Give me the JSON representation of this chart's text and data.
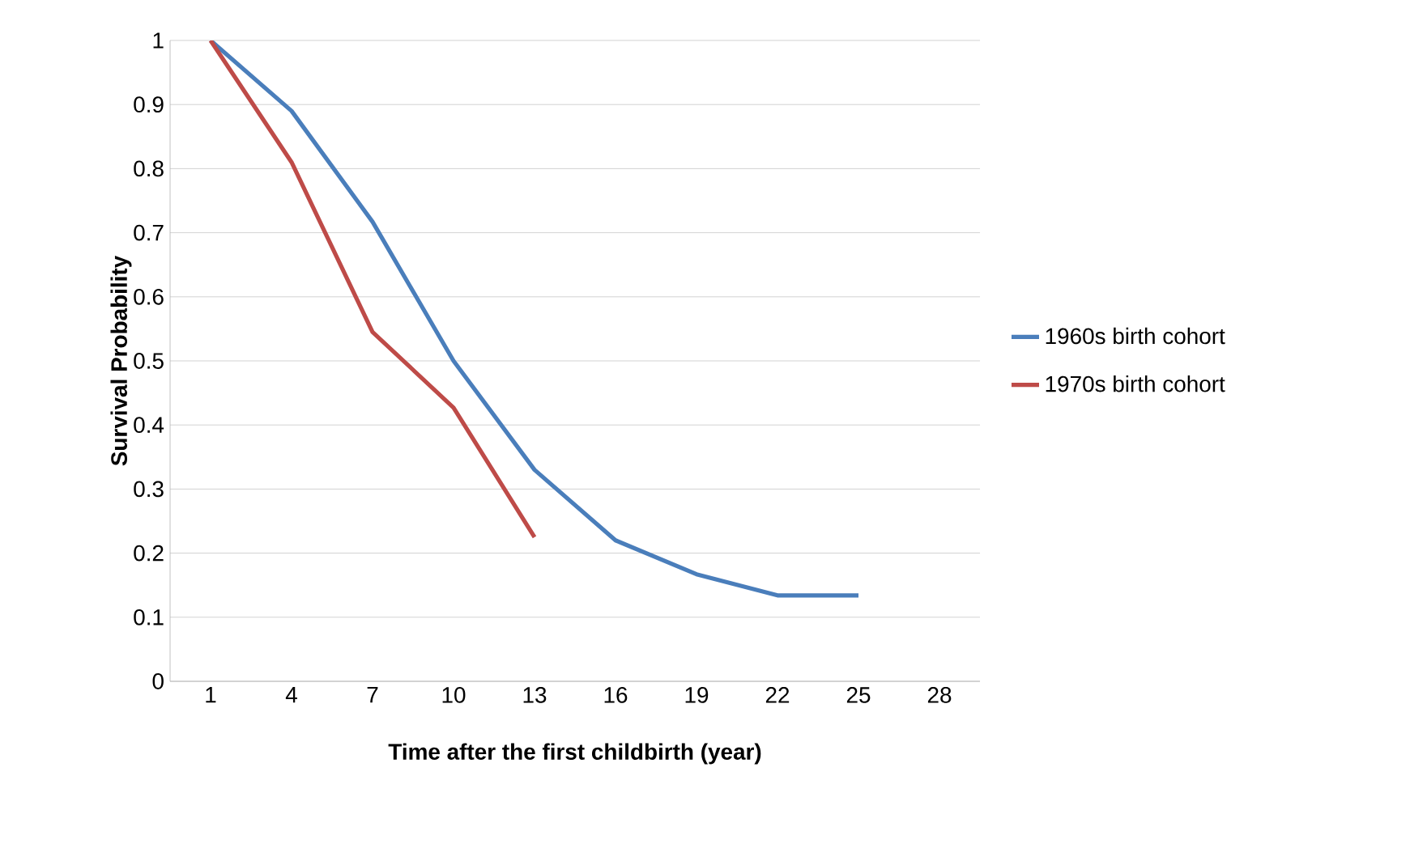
{
  "chart_data": {
    "type": "line",
    "xlabel": "Time after the first childbirth (year)",
    "ylabel": "Survival Probability",
    "categories": [
      "1",
      "4",
      "7",
      "10",
      "13",
      "16",
      "19",
      "22",
      "25",
      "28"
    ],
    "series": [
      {
        "name": "1960s birth cohort",
        "color": "#4a7ebb",
        "values": [
          1,
          0.89,
          0.717,
          0.5,
          0.33,
          0.22,
          0.167,
          0.134,
          0.134,
          null
        ]
      },
      {
        "name": "1970s birth cohort",
        "color": "#be4b48",
        "values": [
          1,
          0.81,
          0.545,
          0.427,
          0.225,
          null,
          null,
          null,
          null,
          null
        ]
      }
    ],
    "ylim": [
      0,
      1
    ],
    "yticks": [
      0,
      0.1,
      0.2,
      0.3,
      0.4,
      0.5,
      0.6,
      0.7,
      0.8,
      0.9,
      1
    ],
    "grid": "y",
    "legend": "right",
    "marker": "none",
    "line_style": "solid"
  }
}
